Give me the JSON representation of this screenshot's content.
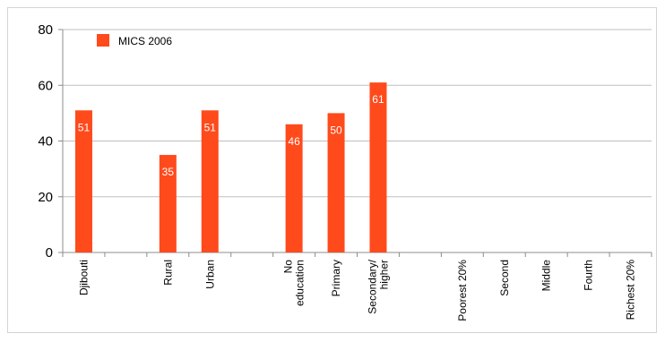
{
  "chart_data": {
    "type": "bar",
    "title": "",
    "xlabel": "",
    "ylabel": "",
    "ylim": [
      0,
      80
    ],
    "yticks": [
      0,
      20,
      40,
      60,
      80
    ],
    "grid": true,
    "legend_position": "top-left",
    "categories": [
      [
        "Djibouti"
      ],
      [
        ""
      ],
      [
        "Rural"
      ],
      [
        "Urban"
      ],
      [
        ""
      ],
      [
        "No",
        "education"
      ],
      [
        "Primary"
      ],
      [
        "Secondary/",
        "higher"
      ],
      [
        ""
      ],
      [
        "Poorest 20%"
      ],
      [
        "Second"
      ],
      [
        "Middle"
      ],
      [
        "Fourth"
      ],
      [
        "Richest 20%"
      ]
    ],
    "series": [
      {
        "name": "MICS 2006",
        "color": "#ff4a1c",
        "values": [
          51,
          null,
          35,
          51,
          null,
          46,
          50,
          61,
          null,
          null,
          null,
          null,
          null,
          null
        ],
        "labels": [
          "51",
          "",
          "35",
          "51",
          "",
          "46",
          "50",
          "61",
          "",
          "",
          "",
          "",
          "",
          ""
        ]
      }
    ]
  }
}
